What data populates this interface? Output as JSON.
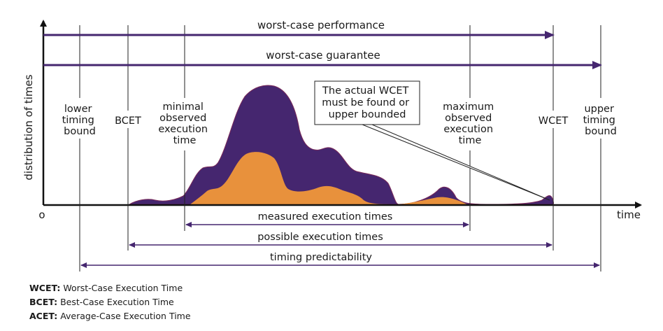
{
  "axes": {
    "y_label": "distribution of times",
    "x_label": "time",
    "origin_label": "o"
  },
  "top_arrows": {
    "worst_case_performance": "worst-case performance",
    "worst_case_guarantee": "worst-case guarantee"
  },
  "markers": {
    "lower_timing_bound": [
      "lower",
      "timing",
      "bound"
    ],
    "bcet": [
      "BCET"
    ],
    "min_observed": [
      "minimal",
      "observed",
      "execution",
      "time"
    ],
    "max_observed": [
      "maximum",
      "observed",
      "execution",
      "time"
    ],
    "wcet": [
      "WCET"
    ],
    "upper_timing_bound": [
      "upper",
      "timing",
      "bound"
    ]
  },
  "callout": [
    "The actual WCET",
    "must be found or",
    "upper bounded"
  ],
  "ranges": {
    "measured": "measured execution times",
    "possible": "possible execution times",
    "predictability": "timing predictability"
  },
  "legend": [
    {
      "abbr": "WCET:",
      "text": "Worst-Case Execution Time"
    },
    {
      "abbr": "BCET:",
      "text": "Best-Case Execution Time"
    },
    {
      "abbr": "ACET:",
      "text": "Average-Case Execution Time"
    }
  ],
  "colors": {
    "purple": "#45266f",
    "orange": "#e8913c",
    "axis": "#111111",
    "line": "#222222"
  }
}
